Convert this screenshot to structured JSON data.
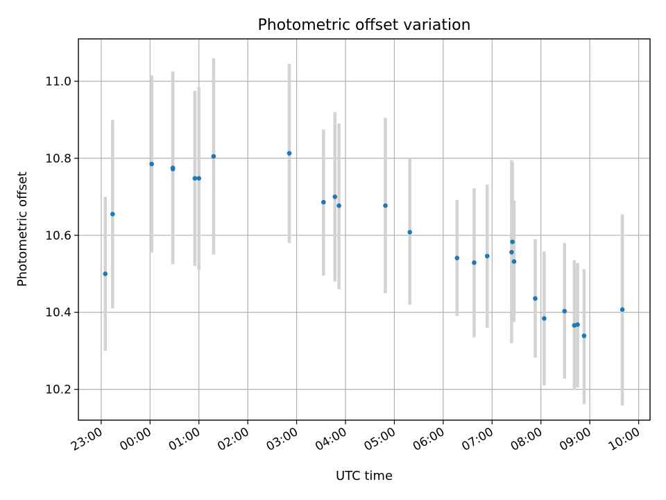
{
  "chart_data": {
    "type": "scatter",
    "title": "Photometric offset variation",
    "xlabel": "UTC time",
    "ylabel": "Photometric offset",
    "x_format": "HH:MM",
    "xlim": [
      "22:32",
      "10:14"
    ],
    "ylim": [
      10.12,
      11.11
    ],
    "x_ticks": [
      "23:00",
      "00:00",
      "01:00",
      "02:00",
      "03:00",
      "04:00",
      "05:00",
      "06:00",
      "07:00",
      "08:00",
      "09:00",
      "10:00"
    ],
    "y_ticks": [
      "10.2",
      "10.4",
      "10.6",
      "10.8",
      "11.0"
    ],
    "grid": true,
    "colors": {
      "marker": "#1f77b4",
      "errorbar": "#d3d3d3",
      "grid": "#b0b0b0"
    },
    "points": [
      {
        "x": "23:05",
        "y": 10.5,
        "ylow": 10.3,
        "yhigh": 10.7
      },
      {
        "x": "23:14",
        "y": 10.655,
        "ylow": 10.41,
        "yhigh": 10.9
      },
      {
        "x": "00:02",
        "y": 10.785,
        "ylow": 10.555,
        "yhigh": 11.015
      },
      {
        "x": "00:28",
        "y": 10.775,
        "ylow": 10.525,
        "yhigh": 11.025
      },
      {
        "x": "00:28",
        "y": 10.772,
        "ylow": 10.525,
        "yhigh": 11.025
      },
      {
        "x": "00:55",
        "y": 10.748,
        "ylow": 10.52,
        "yhigh": 10.975
      },
      {
        "x": "01:00",
        "y": 10.748,
        "ylow": 10.51,
        "yhigh": 10.985
      },
      {
        "x": "01:18",
        "y": 10.805,
        "ylow": 10.55,
        "yhigh": 11.06
      },
      {
        "x": "02:51",
        "y": 10.813,
        "ylow": 10.58,
        "yhigh": 11.045
      },
      {
        "x": "03:33",
        "y": 10.686,
        "ylow": 10.495,
        "yhigh": 10.875
      },
      {
        "x": "03:47",
        "y": 10.7,
        "ylow": 10.48,
        "yhigh": 10.92
      },
      {
        "x": "03:52",
        "y": 10.677,
        "ylow": 10.46,
        "yhigh": 10.89
      },
      {
        "x": "04:49",
        "y": 10.677,
        "ylow": 10.45,
        "yhigh": 10.905
      },
      {
        "x": "05:19",
        "y": 10.608,
        "ylow": 10.42,
        "yhigh": 10.8
      },
      {
        "x": "06:17",
        "y": 10.541,
        "ylow": 10.39,
        "yhigh": 10.692
      },
      {
        "x": "06:38",
        "y": 10.529,
        "ylow": 10.335,
        "yhigh": 10.722
      },
      {
        "x": "06:54",
        "y": 10.546,
        "ylow": 10.36,
        "yhigh": 10.732
      },
      {
        "x": "07:24",
        "y": 10.556,
        "ylow": 10.32,
        "yhigh": 10.795
      },
      {
        "x": "07:25",
        "y": 10.583,
        "ylow": 10.375,
        "yhigh": 10.79
      },
      {
        "x": "07:27",
        "y": 10.532,
        "ylow": 10.375,
        "yhigh": 10.69
      },
      {
        "x": "07:53",
        "y": 10.436,
        "ylow": 10.282,
        "yhigh": 10.59
      },
      {
        "x": "08:04",
        "y": 10.384,
        "ylow": 10.21,
        "yhigh": 10.558
      },
      {
        "x": "08:29",
        "y": 10.403,
        "ylow": 10.228,
        "yhigh": 10.58
      },
      {
        "x": "08:41",
        "y": 10.366,
        "ylow": 10.198,
        "yhigh": 10.535
      },
      {
        "x": "08:45",
        "y": 10.368,
        "ylow": 10.205,
        "yhigh": 10.528
      },
      {
        "x": "08:53",
        "y": 10.339,
        "ylow": 10.162,
        "yhigh": 10.512
      },
      {
        "x": "09:40",
        "y": 10.407,
        "ylow": 10.158,
        "yhigh": 10.655
      }
    ]
  }
}
